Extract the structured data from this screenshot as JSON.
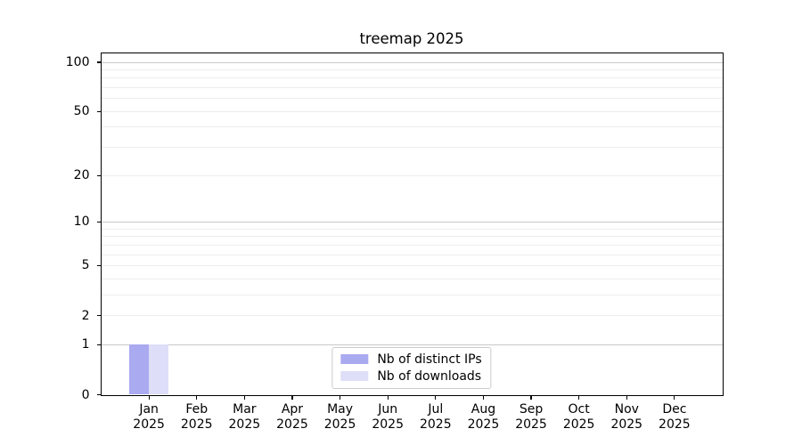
{
  "figure": {
    "background": "#ffffff"
  },
  "chart_data": {
    "type": "bar",
    "title": "treemap 2025",
    "xlabel": "",
    "ylabel": "",
    "yscale": "log1p",
    "ylim": [
      0,
      114
    ],
    "grid": true,
    "legend_position": "lower center",
    "categories": [
      "Jan\n2025",
      "Feb\n2025",
      "Mar\n2025",
      "Apr\n2025",
      "May\n2025",
      "Jun\n2025",
      "Jul\n2025",
      "Aug\n2025",
      "Sep\n2025",
      "Oct\n2025",
      "Nov\n2025",
      "Dec\n2025"
    ],
    "series": [
      {
        "name": "Nb of distinct IPs",
        "color": "#aaaaf0",
        "values": [
          1,
          0,
          0,
          0,
          0,
          0,
          0,
          0,
          0,
          0,
          0,
          0
        ]
      },
      {
        "name": "Nb of downloads",
        "color": "#dedef8",
        "values": [
          1,
          0,
          0,
          0,
          0,
          0,
          0,
          0,
          0,
          0,
          0,
          0
        ]
      }
    ],
    "y_ticks": [
      0,
      1,
      2,
      5,
      10,
      20,
      50,
      100
    ],
    "grid_major": [
      1,
      10,
      100
    ],
    "grid_minor": [
      2,
      3,
      4,
      5,
      6,
      7,
      8,
      9,
      20,
      30,
      40,
      50,
      60,
      70,
      80,
      90
    ],
    "colors": {
      "grid_major": "#c9c9c9",
      "grid_minor": "#ededed",
      "spine": "#000000",
      "tick_label": "#000000",
      "legend_border": "#cccccc"
    }
  }
}
